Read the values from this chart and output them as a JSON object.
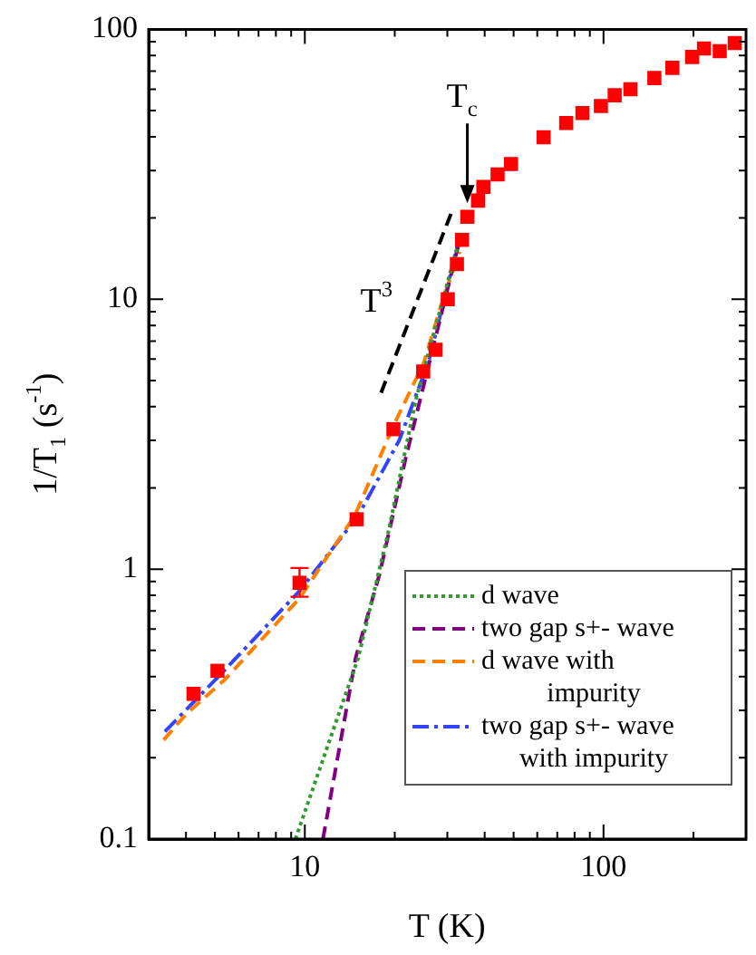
{
  "chart_data": {
    "type": "scatter",
    "xlabel": "T (K)",
    "ylabel": "1/T$_{1}$ (s$^{-1}$)",
    "log": "xy",
    "grid": false,
    "legend": "bottom right",
    "xlim": [
      3,
      300
    ],
    "ylim": [
      0.1,
      100
    ],
    "xticks": [
      {
        "value": 4,
        "label": null
      },
      {
        "value": 5,
        "label": null
      },
      {
        "value": 6,
        "label": null
      },
      {
        "value": 7,
        "label": null
      },
      {
        "value": 8,
        "label": null
      },
      {
        "value": 9,
        "label": null
      },
      10,
      {
        "value": 20,
        "label": null
      },
      {
        "value": 30,
        "label": null
      },
      {
        "value": 40,
        "label": null
      },
      {
        "value": 50,
        "label": null
      },
      {
        "value": 60,
        "label": null
      },
      {
        "value": 70,
        "label": null
      },
      {
        "value": 80,
        "label": null
      },
      {
        "value": 90,
        "label": null
      },
      100,
      {
        "value": 200,
        "label": null
      }
    ],
    "yticks": [
      0.1,
      {
        "value": 0.2,
        "label": null
      },
      {
        "value": 0.3,
        "label": null
      },
      {
        "value": 0.4,
        "label": null
      },
      {
        "value": 0.5,
        "label": null
      },
      {
        "value": 0.6,
        "label": null
      },
      {
        "value": 0.7,
        "label": null
      },
      {
        "value": 0.8,
        "label": null
      },
      {
        "value": 0.9,
        "label": null
      },
      1,
      {
        "value": 2,
        "label": null
      },
      {
        "value": 3,
        "label": null
      },
      {
        "value": 4,
        "label": null
      },
      {
        "value": 5,
        "label": null
      },
      {
        "value": 6,
        "label": null
      },
      {
        "value": 7,
        "label": null
      },
      {
        "value": 8,
        "label": null
      },
      {
        "value": 9,
        "label": null
      },
      10,
      {
        "value": 20,
        "label": null
      },
      {
        "value": 30,
        "label": null
      },
      {
        "value": 40,
        "label": null
      },
      {
        "value": 50,
        "label": null
      },
      {
        "value": 60,
        "label": null
      },
      {
        "value": 70,
        "label": null
      },
      {
        "value": 80,
        "label": null
      },
      {
        "value": 90,
        "label": null
      },
      100
    ],
    "annotations": [
      {
        "text": "T$^{3}$",
        "x": 23.9,
        "y": 10
      },
      {
        "text": "T$_{c}$",
        "x": 35,
        "y": 22
      }
    ],
    "series": [
      {
        "color": "#ff0000",
        "marker": "square",
        "x": [
          4.24,
          5.1,
          9.6,
          14.9,
          19.8,
          24.9,
          27.4,
          30.1,
          32.3,
          33.6,
          35,
          38,
          39.6,
          44.2,
          49,
          63,
          75,
          85,
          98,
          109,
          123,
          148,
          170,
          198,
          217,
          245,
          275
        ],
        "values": [
          0.345,
          0.42,
          0.89,
          1.53,
          3.3,
          5.4,
          6.5,
          10,
          13.5,
          16.6,
          20.2,
          23.2,
          26.1,
          29,
          31.7,
          39.8,
          45,
          49,
          52,
          57,
          60,
          66,
          72,
          79,
          85,
          83,
          89
        ],
        "errors": [
          null,
          null,
          [
            0.79,
            1.01
          ],
          null,
          null,
          null,
          null,
          null,
          null,
          null,
          null,
          null,
          null,
          null,
          null,
          null,
          null,
          null,
          null,
          null,
          null,
          null,
          null,
          null,
          null,
          null,
          null
        ]
      },
      {
        "type": "line",
        "color": "#000000",
        "line_style": "dashed",
        "x": [
          18,
          31
        ],
        "values": [
          4.5,
          21
        ]
      },
      {
        "type": "line",
        "name": "d wave",
        "color": "#339933",
        "line_style": "dotted",
        "x": [
          9.3,
          15.1,
          19,
          23.6,
          33
        ],
        "values": [
          0.1,
          0.47,
          1.36,
          4.3,
          16.9
        ]
      },
      {
        "type": "line",
        "name": "two gap s+- wave",
        "color": "#800080",
        "line_style": "dashed",
        "x": [
          11.5,
          14.8,
          17.8,
          21.8,
          33
        ],
        "values": [
          0.1,
          0.47,
          0.96,
          2.6,
          16.6
        ]
      },
      {
        "type": "line",
        "name": "d wave with impurity",
        "color": "#ff8000",
        "line_style": "dashed",
        "x": [
          3.37,
          4,
          5.4,
          9.6,
          14.7,
          19.8,
          25,
          29,
          33
        ],
        "values": [
          0.233,
          0.29,
          0.39,
          0.78,
          1.58,
          3.4,
          5.8,
          10,
          15
        ]
      },
      {
        "type": "line",
        "name": "two gap s+- wave with impurity",
        "color": "#3344ff",
        "line_style": "dashdot",
        "x": [
          3.4,
          5.25,
          9.6,
          15.1,
          20.7,
          26,
          33
        ],
        "values": [
          0.25,
          0.41,
          0.83,
          1.58,
          3,
          5.9,
          17
        ]
      }
    ]
  }
}
